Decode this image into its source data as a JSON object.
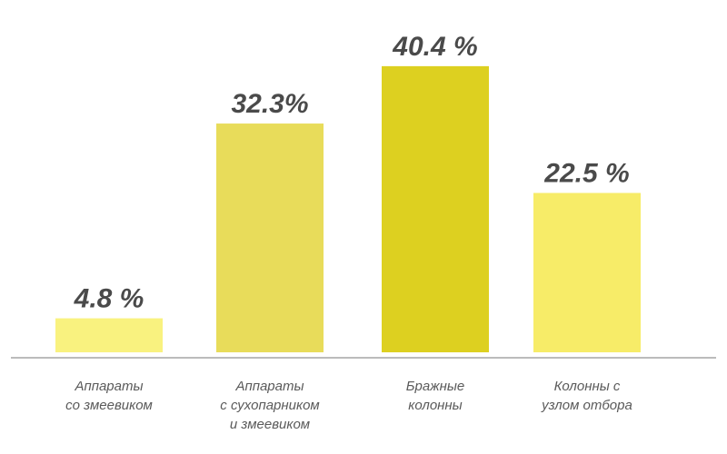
{
  "chart_data": {
    "type": "bar",
    "categories": [
      [
        "Аппараты",
        "со змеевиком"
      ],
      [
        "Аппараты",
        "с сухопарником",
        "и змеевиком"
      ],
      [
        "Бражные",
        "колонны"
      ],
      [
        "Колонны с",
        "узлом отбора"
      ]
    ],
    "values": [
      4.8,
      32.3,
      40.4,
      22.5
    ],
    "value_labels": [
      "4.8 %",
      "32.3%",
      "40.4 %",
      "22.5 %"
    ],
    "colors": [
      "#f9f27f",
      "#e8dc5a",
      "#ddd020",
      "#f7ec68"
    ],
    "ylim": [
      0,
      46
    ],
    "title": "",
    "xlabel": "",
    "ylabel": "",
    "grid": false,
    "legend": "none"
  }
}
